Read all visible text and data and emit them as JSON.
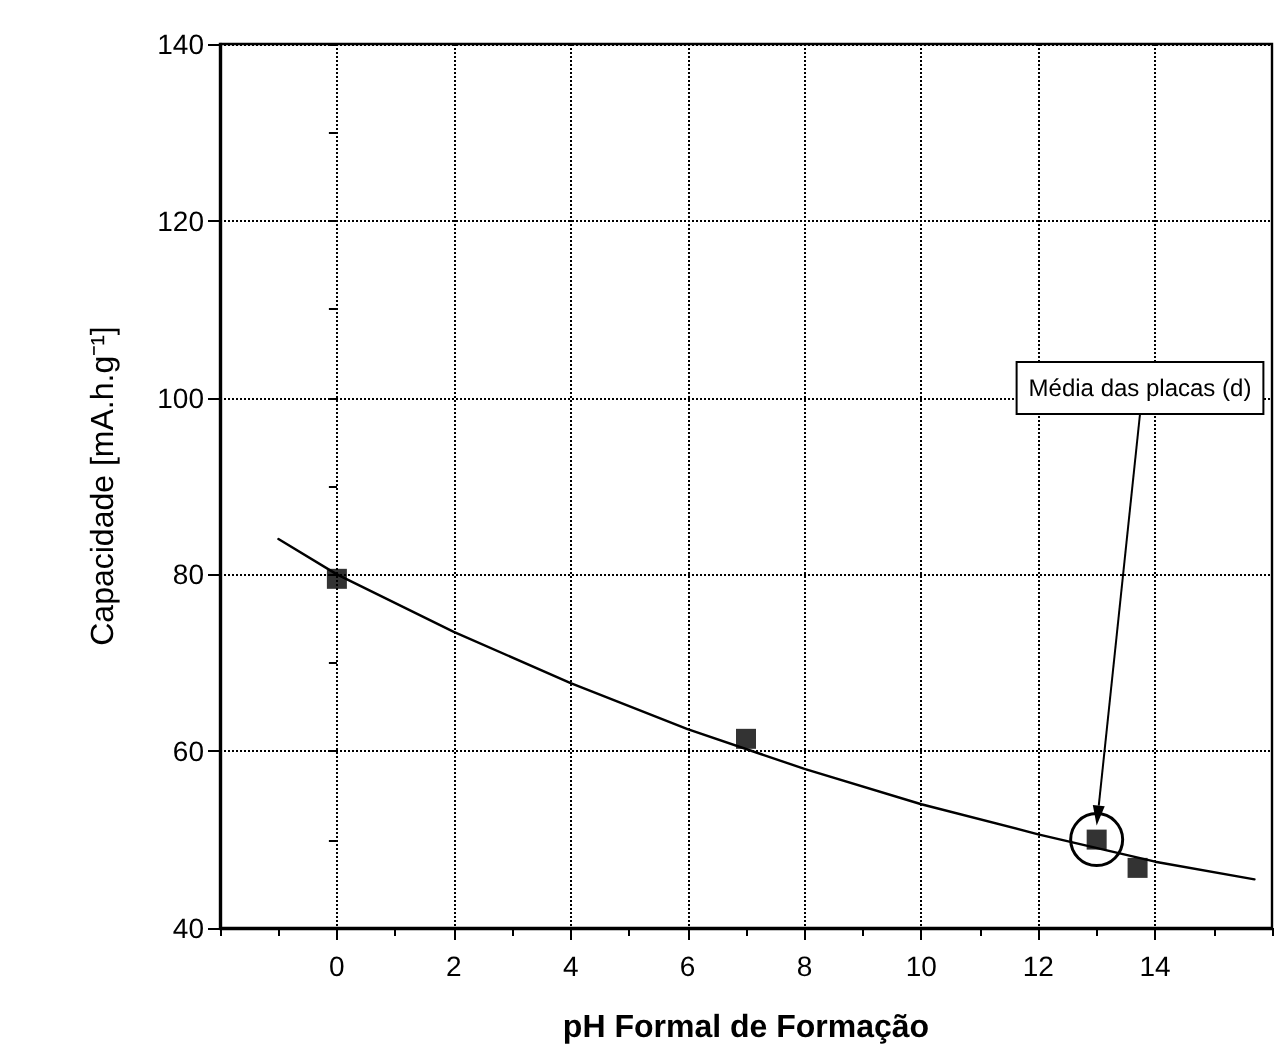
{
  "chart_data": {
    "type": "scatter",
    "xlabel": "pH Formal de Formação",
    "ylabel": "Capacidade [mA.h.g⁻¹]",
    "xlim": [
      -2,
      16
    ],
    "xticks": [
      0,
      2,
      4,
      6,
      8,
      10,
      12,
      14
    ],
    "ylim": [
      40,
      140
    ],
    "yticks": [
      40,
      60,
      80,
      100,
      120,
      140
    ],
    "grid": true,
    "marker": "square",
    "series": [
      {
        "color": "#000000",
        "x": [
          0,
          7,
          13,
          13.7
        ],
        "values": [
          79.5,
          61.4,
          50,
          46.8
        ]
      },
      {
        "type": "line",
        "color": "#000000",
        "marker": "none",
        "line_style": "solid",
        "x": [
          -1,
          0,
          2,
          4,
          6,
          8,
          10,
          12,
          14,
          15.7
        ],
        "values": [
          84,
          80,
          73.5,
          67.7,
          62.5,
          58,
          54,
          50.6,
          47.5,
          45.5
        ]
      }
    ],
    "annotations": [
      "Média das placas (d)"
    ]
  }
}
